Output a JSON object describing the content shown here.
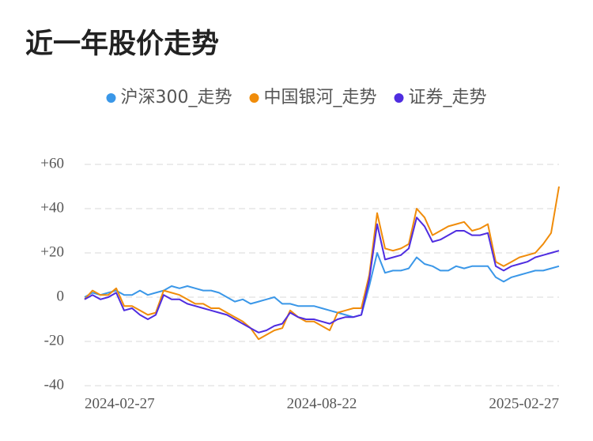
{
  "chart_data": {
    "type": "line",
    "title": "近一年股价走势",
    "categories": [
      "2024-02-27",
      null,
      null,
      null,
      null,
      null,
      null,
      null,
      null,
      null,
      null,
      null,
      null,
      null,
      null,
      null,
      null,
      null,
      null,
      null,
      null,
      null,
      null,
      null,
      null,
      null,
      null,
      null,
      null,
      null,
      "2024-08-22",
      null,
      null,
      null,
      null,
      null,
      null,
      null,
      null,
      null,
      null,
      null,
      null,
      null,
      null,
      null,
      null,
      null,
      null,
      null,
      null,
      null,
      null,
      null,
      null,
      null,
      null,
      null,
      null,
      null,
      "2025-02-27"
    ],
    "series": [
      {
        "name": "沪深300_走势",
        "color": "#3a97e8",
        "values": [
          0,
          2,
          1,
          2,
          3,
          1,
          1,
          3,
          1,
          2,
          3,
          5,
          4,
          5,
          4,
          3,
          3,
          2,
          0,
          -2,
          -1,
          -3,
          -2,
          -1,
          0,
          -3,
          -3,
          -4,
          -4,
          -4,
          -5,
          -6,
          -7,
          -8,
          -9,
          -8,
          5,
          20,
          11,
          12,
          12,
          13,
          18,
          15,
          14,
          12,
          12,
          14,
          13,
          14,
          14,
          14,
          9,
          7,
          9,
          10,
          11,
          12,
          12,
          13,
          14
        ]
      },
      {
        "name": "中国银河_走势",
        "color": "#f08c0a",
        "values": [
          -1,
          3,
          1,
          1,
          4,
          -4,
          -4,
          -6,
          -8,
          -7,
          3,
          2,
          1,
          -1,
          -3,
          -3,
          -5,
          -5,
          -7,
          -9,
          -11,
          -14,
          -19,
          -17,
          -15,
          -14,
          -6,
          -9,
          -11,
          -11,
          -13,
          -15,
          -7,
          -6,
          -5,
          -5,
          10,
          38,
          22,
          21,
          22,
          24,
          40,
          36,
          28,
          30,
          32,
          33,
          34,
          30,
          31,
          33,
          16,
          14,
          16,
          18,
          19,
          20,
          24,
          29,
          50
        ]
      },
      {
        "name": "证券_走势",
        "color": "#4f2de0",
        "values": [
          -1,
          1,
          -1,
          0,
          2,
          -6,
          -5,
          -8,
          -10,
          -8,
          1,
          -1,
          -1,
          -3,
          -4,
          -5,
          -6,
          -7,
          -8,
          -10,
          -12,
          -14,
          -16,
          -15,
          -13,
          -12,
          -7,
          -9,
          -10,
          -10,
          -11,
          -12,
          -10,
          -9,
          -9,
          -8,
          8,
          33,
          17,
          18,
          19,
          22,
          36,
          32,
          25,
          26,
          28,
          30,
          30,
          28,
          28,
          29,
          14,
          12,
          14,
          15,
          16,
          18,
          19,
          20,
          21
        ]
      }
    ],
    "ylim": [
      -40,
      60
    ],
    "yticks": [
      {
        "value": 60,
        "label": "+60"
      },
      {
        "value": 40,
        "label": "+40"
      },
      {
        "value": 20,
        "label": "+20"
      },
      0,
      {
        "value": -20,
        "label": "-20"
      },
      {
        "value": -40,
        "label": "-40"
      }
    ],
    "grid": true
  }
}
